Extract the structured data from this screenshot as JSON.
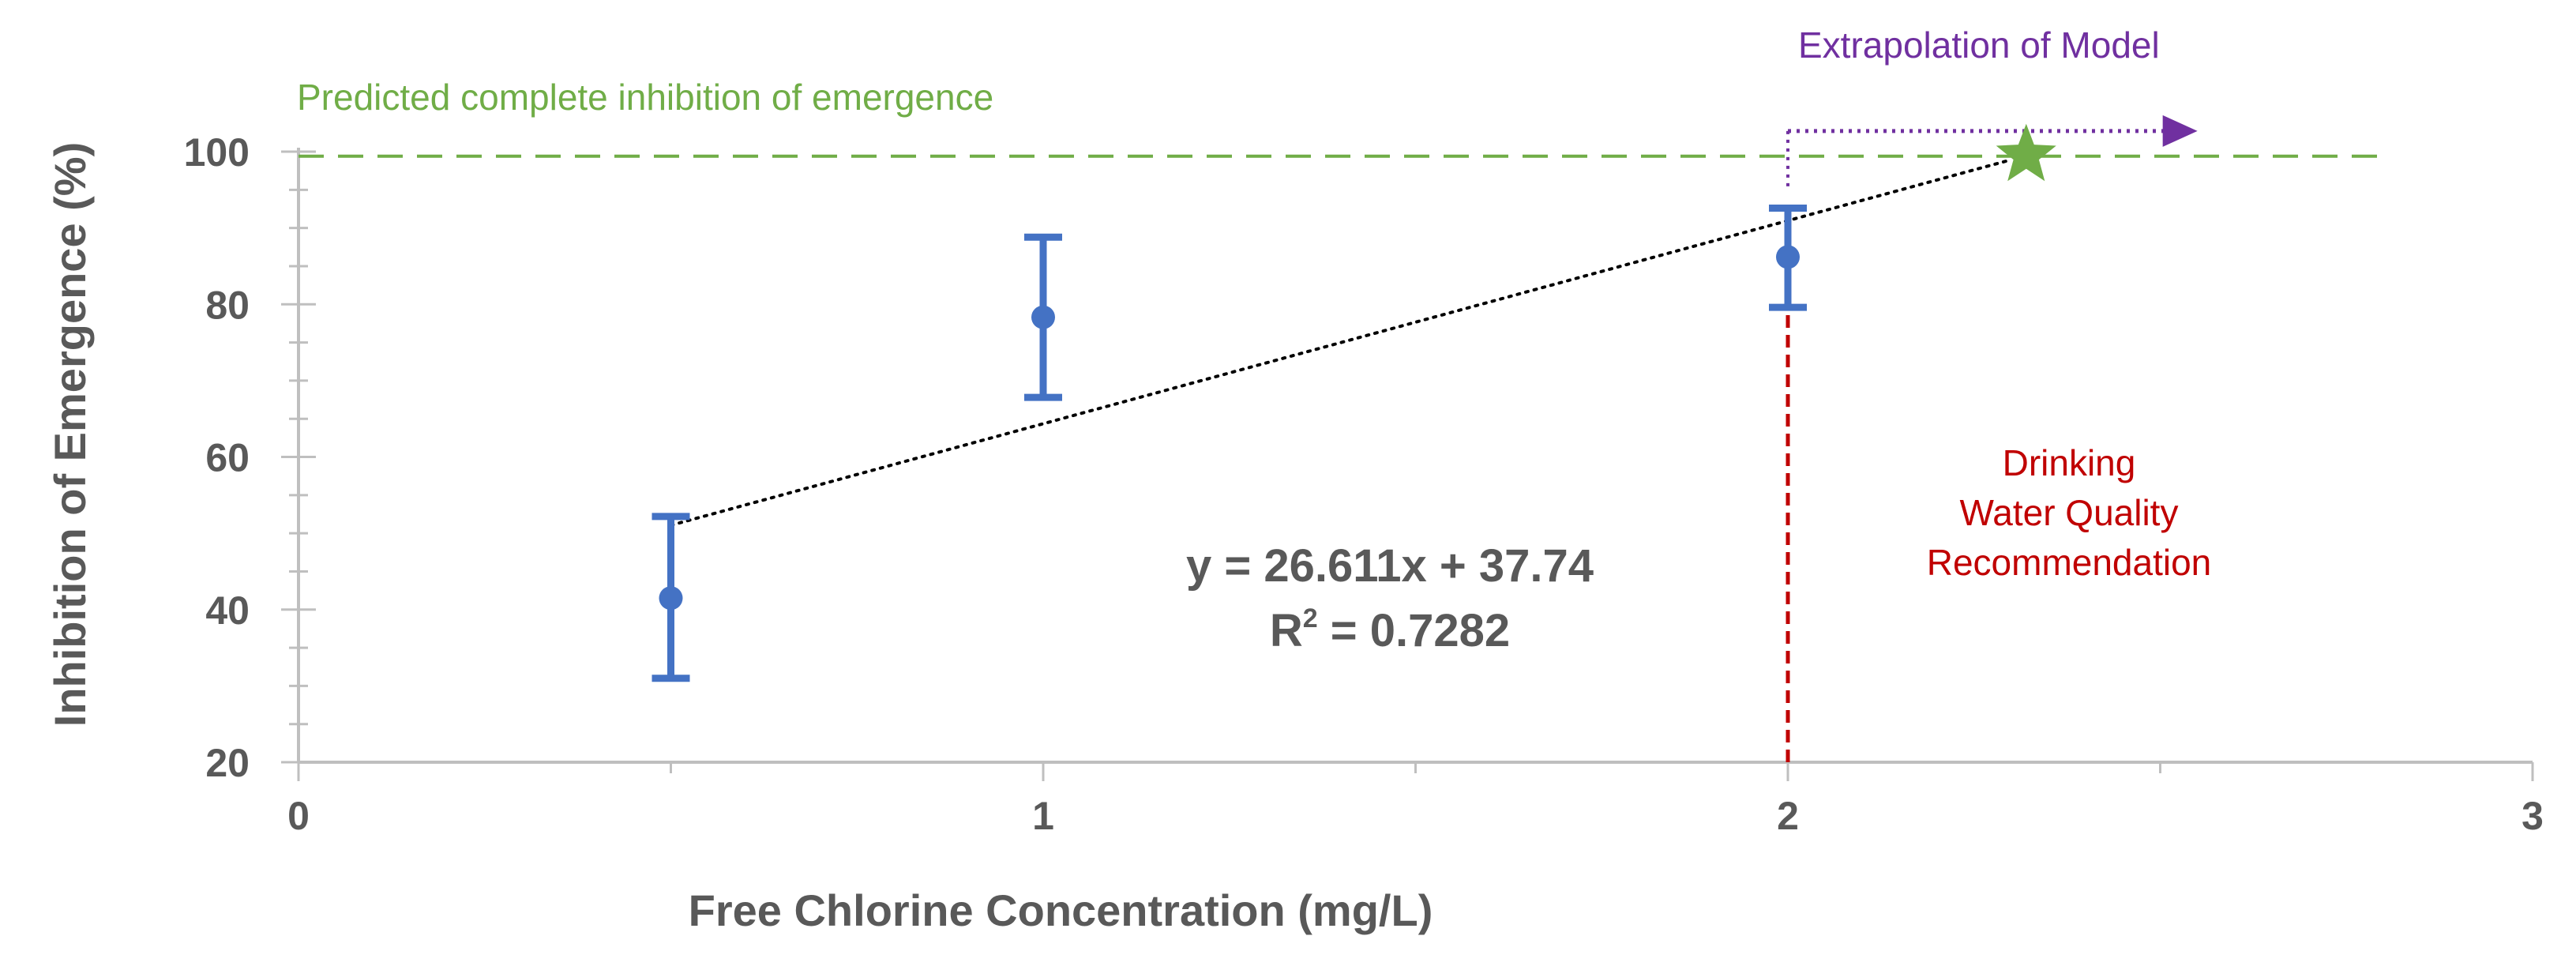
{
  "chart_data": {
    "type": "scatter",
    "title": "",
    "xlabel": "Free Chlorine Concentration  (mg/L)",
    "ylabel": "Inhibition of Emergence (%)",
    "xlim": [
      0,
      3
    ],
    "ylim": [
      20,
      100
    ],
    "x_ticks": [
      "0",
      "1",
      "2",
      "3"
    ],
    "y_ticks": [
      "20",
      "40",
      "60",
      "80",
      "100"
    ],
    "grid": false,
    "legend": "none",
    "series": [
      {
        "x": [
          0.5,
          1.0,
          2.0
        ],
        "y": [
          41.5,
          78.3,
          86.2
        ],
        "error_low": [
          31.0,
          67.8,
          79.6
        ],
        "error_high": [
          52.2,
          88.8,
          92.6
        ],
        "color": "#4472c4"
      }
    ],
    "trendline": {
      "slope": 26.611,
      "intercept": 37.74,
      "x_range": [
        0.5,
        2.3
      ],
      "equation_line1": "y = 26.611x + 37.74",
      "equation_line2_prefix": "R",
      "equation_line2_sup": "2",
      "equation_line2_suffix": " = 0.7282",
      "color": "#000000"
    },
    "reference_lines": {
      "complete_inhibition_y": 99.4,
      "complete_inhibition_label": "Predicted complete inhibition of emergence",
      "complete_inhibition_color": "#70ad47",
      "drinking_water_x": 2.0,
      "drinking_water_label_lines": [
        "Drinking",
        "Water  Quality",
        "Recommendation"
      ],
      "drinking_water_color": "#c00000"
    },
    "extrapolation": {
      "label": "Extrapolation of Model",
      "x_start": 2.0,
      "x_end": 2.55,
      "y": 102.7,
      "color": "#7030a0"
    },
    "marker_star": {
      "x": 2.32,
      "y": 99.5,
      "color": "#70ad47"
    }
  }
}
